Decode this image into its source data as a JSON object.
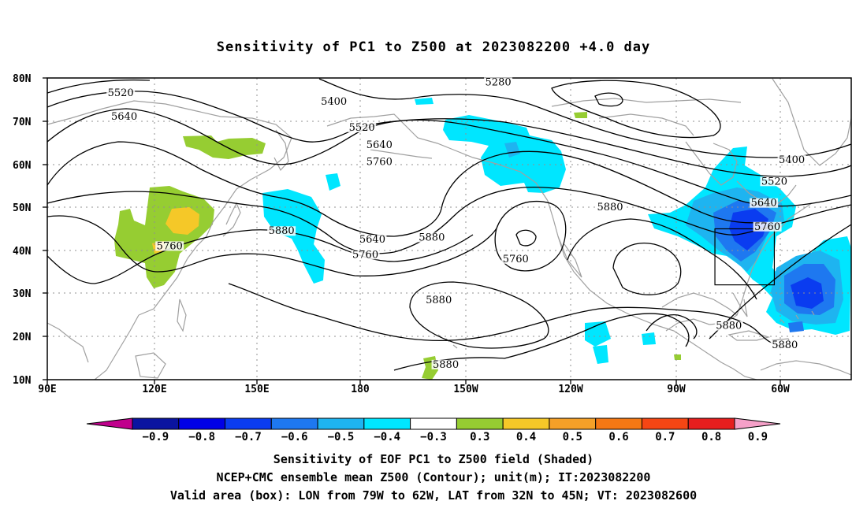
{
  "title": "Sensitivity of PC1 to Z500 at 2023082200 +4.0 day",
  "lat_labels": [
    "80N",
    "70N",
    "60N",
    "50N",
    "40N",
    "30N",
    "20N",
    "10N"
  ],
  "lon_labels": [
    "90E",
    "120E",
    "150E",
    "180",
    "150W",
    "120W",
    "90W",
    "60W"
  ],
  "contour_labels": [
    {
      "text": "5520",
      "lon": 111,
      "lat": 76.5
    },
    {
      "text": "5640",
      "lon": 112,
      "lat": 71.0
    },
    {
      "text": "5400",
      "lon": 172,
      "lat": 74.5
    },
    {
      "text": "5280",
      "lon": 219,
      "lat": 79.0
    },
    {
      "text": "5520",
      "lon": 180,
      "lat": 68.5
    },
    {
      "text": "5640",
      "lon": 185,
      "lat": 64.5
    },
    {
      "text": "5760",
      "lon": 185,
      "lat": 60.5
    },
    {
      "text": "5400",
      "lon": 303,
      "lat": 61.0
    },
    {
      "text": "5520",
      "lon": 298,
      "lat": 56.0
    },
    {
      "text": "5640",
      "lon": 295,
      "lat": 51.0
    },
    {
      "text": "5760",
      "lon": 296,
      "lat": 45.5
    },
    {
      "text": "5880",
      "lon": 251,
      "lat": 50.0
    },
    {
      "text": "5880",
      "lon": 157,
      "lat": 44.5
    },
    {
      "text": "5640",
      "lon": 183,
      "lat": 42.5
    },
    {
      "text": "5760",
      "lon": 181,
      "lat": 39.0
    },
    {
      "text": "5880",
      "lon": 200,
      "lat": 43.0
    },
    {
      "text": "5760",
      "lon": 224,
      "lat": 38.0
    },
    {
      "text": "5760",
      "lon": 125,
      "lat": 41.0
    },
    {
      "text": "5880",
      "lon": 202,
      "lat": 28.5
    },
    {
      "text": "5880",
      "lon": 285,
      "lat": 22.5
    },
    {
      "text": "5880",
      "lon": 204,
      "lat": 13.5
    },
    {
      "text": "5880",
      "lon": 301,
      "lat": 18.0
    }
  ],
  "valid_box": {
    "lon_w": 79,
    "lon_e": 62,
    "lat_s": 32,
    "lat_n": 45
  },
  "colorbar": {
    "labels": [
      "−0.9",
      "−0.8",
      "−0.7",
      "−0.6",
      "−0.5",
      "−0.4",
      "−0.3",
      "0.3",
      "0.4",
      "0.5",
      "0.6",
      "0.7",
      "0.8",
      "0.9"
    ],
    "low_arrow_color": "#c0008c",
    "high_arrow_color": "#f5a0c8",
    "colors": [
      "#0a14a0",
      "#0000e6",
      "#0a3cf0",
      "#1e78f0",
      "#1eb4f0",
      "#00e6ff",
      "#ffffff",
      "#96cd32",
      "#f5c828",
      "#f5a028",
      "#f57814",
      "#f54614",
      "#e61e1e"
    ]
  },
  "palette": {
    "blue_strong": "#0a3cf0",
    "blue_mid": "#1e78f0",
    "blue_light": "#1eb4f0",
    "cyan": "#00e6ff",
    "green": "#96cd32",
    "yellow": "#f5c828",
    "coast": "#a0a0a0",
    "contour": "#000000"
  },
  "captions": [
    "Sensitivity of EOF PC1 to Z500 field (Shaded)",
    "NCEP+CMC ensemble mean Z500 (Contour); unit(m); IT:2023082200",
    "Valid area (box): LON from 79W to 62W, LAT from 32N to 45N; VT: 2023082600"
  ]
}
